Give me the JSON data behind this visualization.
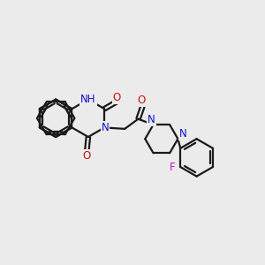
{
  "background_color": "#ebebeb",
  "bond_color": "#1a1a1a",
  "bond_width": 1.6,
  "atom_colors": {
    "N": "#1010cc",
    "NH": "#1010cc",
    "H": "#5aadad",
    "O": "#cc1010",
    "F": "#cc10cc",
    "C": "#1a1a1a"
  },
  "font_size": 8.5,
  "fig_width": 3.0,
  "fig_height": 3.0,
  "dpi": 100
}
